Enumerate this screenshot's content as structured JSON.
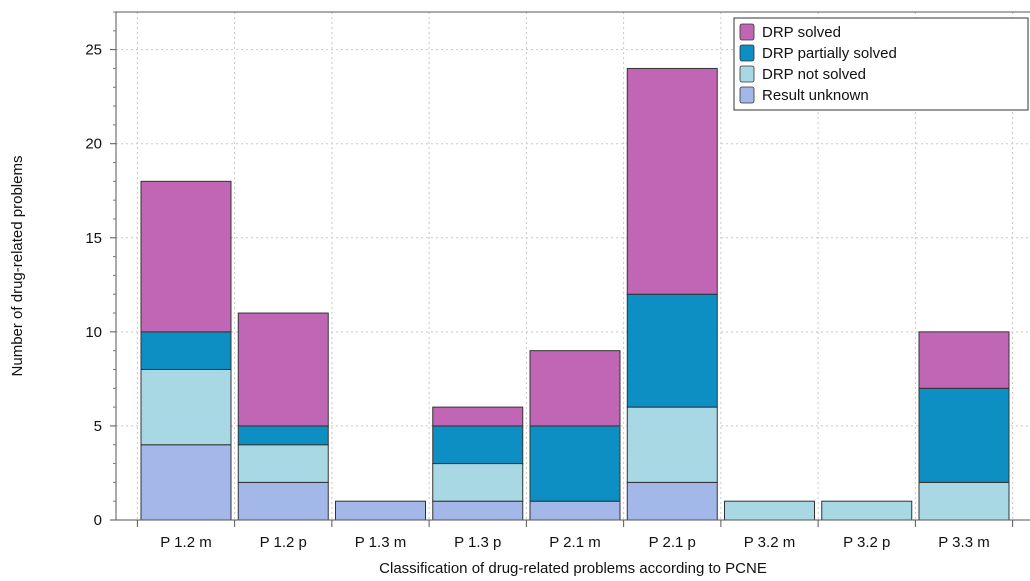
{
  "chart_data": {
    "type": "bar",
    "stacked": true,
    "title": "",
    "xlabel": "Classification of drug-related problems according to PCNE",
    "ylabel": "Number of drug-related problems",
    "ylim": [
      0,
      27
    ],
    "yticks": [
      0,
      5,
      10,
      15,
      20,
      25
    ],
    "grid": true,
    "legend_position": "top-right",
    "categories": [
      "P 1.2 m",
      "P 1.2 p",
      "P 1.3 m",
      "P 1.3 p",
      "P 2.1 m",
      "P 2.1 p",
      "P 3.2 m",
      "P 3.2 p",
      "P 3.3 m"
    ],
    "series": [
      {
        "name": "Result unknown",
        "color": "#a3b8e9",
        "values": [
          4,
          2,
          1,
          1,
          1,
          2,
          0,
          0,
          0
        ]
      },
      {
        "name": "DRP not solved",
        "color": "#a8d8e4",
        "values": [
          4,
          2,
          0,
          2,
          0,
          4,
          1,
          1,
          2
        ]
      },
      {
        "name": "DRP partially solved",
        "color": "#0d8fc4",
        "values": [
          2,
          1,
          0,
          2,
          4,
          6,
          0,
          0,
          5
        ]
      },
      {
        "name": "DRP solved",
        "color": "#c066b4",
        "values": [
          8,
          6,
          0,
          1,
          4,
          12,
          0,
          0,
          3
        ]
      }
    ],
    "legend_order": [
      "DRP solved",
      "DRP partially solved",
      "DRP not solved",
      "Result unknown"
    ]
  }
}
